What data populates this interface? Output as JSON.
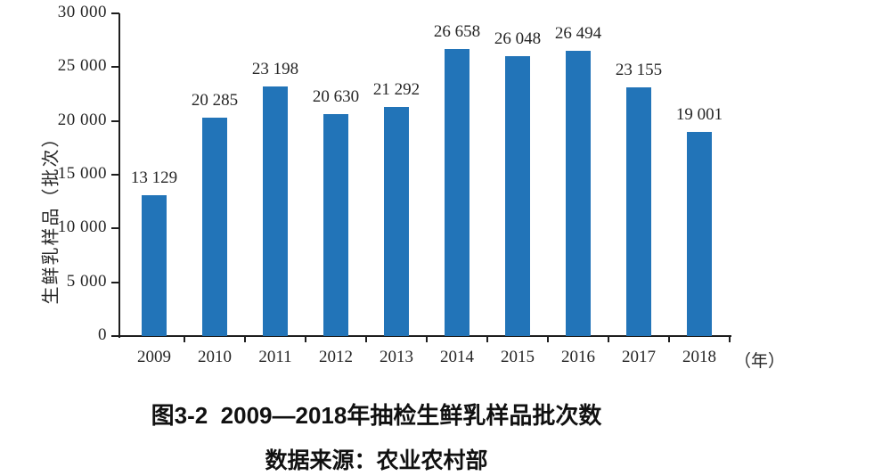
{
  "figure": {
    "caption": "图3-2  2009—2018年抽检生鲜乳样品批次数",
    "source": "数据来源：农业农村部"
  },
  "chart_data": {
    "type": "bar",
    "title": "图3-2 2009—2018年抽检生鲜乳样品批次数",
    "source": "数据来源：农业农村部",
    "categories": [
      "2009",
      "2010",
      "2011",
      "2012",
      "2013",
      "2014",
      "2015",
      "2016",
      "2017",
      "2018"
    ],
    "values": [
      13129,
      20285,
      23198,
      20630,
      21292,
      26658,
      26048,
      26494,
      23155,
      19001
    ],
    "value_labels": [
      "13 129",
      "20 285",
      "23 198",
      "20 630",
      "21 292",
      "26 658",
      "26 048",
      "26 494",
      "23 155",
      "19 001"
    ],
    "xlabel": "（年）",
    "ylabel": "生鲜乳样品（批次）",
    "ylim": [
      0,
      30000
    ],
    "yticks": [
      0,
      5000,
      10000,
      15000,
      20000,
      25000,
      30000
    ],
    "ytick_labels": [
      "0",
      "5 000",
      "10 000",
      "15 000",
      "20 000",
      "25 000",
      "30 000"
    ],
    "bar_color": "#2274B8",
    "axis_color": "#1e1e1e",
    "grid": false,
    "legend": null
  }
}
